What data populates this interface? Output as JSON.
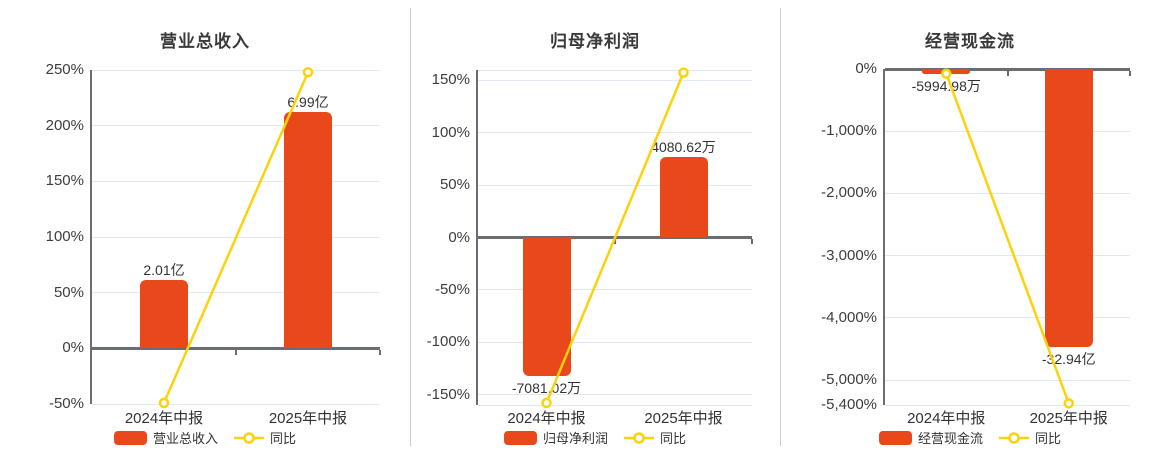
{
  "colors": {
    "bar": "#e8481a",
    "line": "#fcd20b",
    "marker_fill": "#ffffff",
    "axis": "#6b6d75",
    "grid": "#e2e8ef",
    "tick_text": "#3d3d3d",
    "text": "#333333",
    "title_text": "#3a3a3a",
    "divider": "#c9ccd1",
    "background": "#ffffff"
  },
  "chart_data": [
    {
      "type": "bar+line",
      "title": "营业总收入",
      "categories": [
        "2024年中报",
        "2025年中报"
      ],
      "series": [
        {
          "name": "营业总收入",
          "type": "bar",
          "display_values": [
            "2.01亿",
            "6.99亿"
          ],
          "axis_values": [
            61,
            212
          ]
        },
        {
          "name": "同比",
          "type": "line",
          "unit": "percent",
          "values": [
            -49,
            248
          ]
        }
      ],
      "y_axis": {
        "min": -50,
        "max": 250,
        "boundary_grids": [],
        "ticks": [
          {
            "v": 250,
            "label": "250%"
          },
          {
            "v": 200,
            "label": "200%"
          },
          {
            "v": 150,
            "label": "150%"
          },
          {
            "v": 100,
            "label": "100%"
          },
          {
            "v": 50,
            "label": "50%"
          },
          {
            "v": 0,
            "label": "0%"
          },
          {
            "v": -50,
            "label": "-50%"
          }
        ]
      },
      "legend": {
        "bar_label": "营业总收入",
        "line_label": "同比"
      },
      "legend_position": "bottom",
      "grid_on": true
    },
    {
      "type": "bar+line",
      "title": "归母净利润",
      "categories": [
        "2024年中报",
        "2025年中报"
      ],
      "series": [
        {
          "name": "归母净利润",
          "type": "bar",
          "display_values": [
            "-7081.02万",
            "4080.62万"
          ],
          "axis_values": [
            -132.5,
            76.5
          ]
        },
        {
          "name": "同比",
          "type": "line",
          "unit": "percent",
          "values": [
            -158,
            157.5
          ]
        }
      ],
      "y_axis": {
        "min": -160,
        "max": 160,
        "boundary_grids": [
          160,
          -160
        ],
        "ticks": [
          {
            "v": 150,
            "label": "150%"
          },
          {
            "v": 100,
            "label": "100%"
          },
          {
            "v": 50,
            "label": "50%"
          },
          {
            "v": 0,
            "label": "0%"
          },
          {
            "v": -50,
            "label": "-50%"
          },
          {
            "v": -100,
            "label": "-100%"
          },
          {
            "v": -150,
            "label": "-150%"
          }
        ]
      },
      "legend": {
        "bar_label": "归母净利润",
        "line_label": "同比"
      },
      "legend_position": "bottom",
      "grid_on": true
    },
    {
      "type": "bar+line",
      "title": "经营现金流",
      "categories": [
        "2024年中报",
        "2025年中报"
      ],
      "series": [
        {
          "name": "经营现金流",
          "type": "bar",
          "display_values": [
            "-5994.98万",
            "-32.94亿"
          ],
          "axis_values": [
            -80,
            -4460
          ]
        },
        {
          "name": "同比",
          "type": "line",
          "unit": "percent",
          "values": [
            -75,
            -5373
          ]
        }
      ],
      "y_axis": {
        "min": -5400,
        "max": 0,
        "boundary_grids": [],
        "ticks": [
          {
            "v": 0,
            "label": "0%"
          },
          {
            "v": -1000,
            "label": "-1,000%"
          },
          {
            "v": -2000,
            "label": "-2,000%"
          },
          {
            "v": -3000,
            "label": "-3,000%"
          },
          {
            "v": -4000,
            "label": "-4,000%"
          },
          {
            "v": -5000,
            "label": "-5,000%"
          },
          {
            "v": -5400,
            "label": "-5,400%"
          }
        ]
      },
      "legend": {
        "bar_label": "经营现金流",
        "line_label": "同比"
      },
      "legend_position": "bottom",
      "grid_on": true
    }
  ]
}
